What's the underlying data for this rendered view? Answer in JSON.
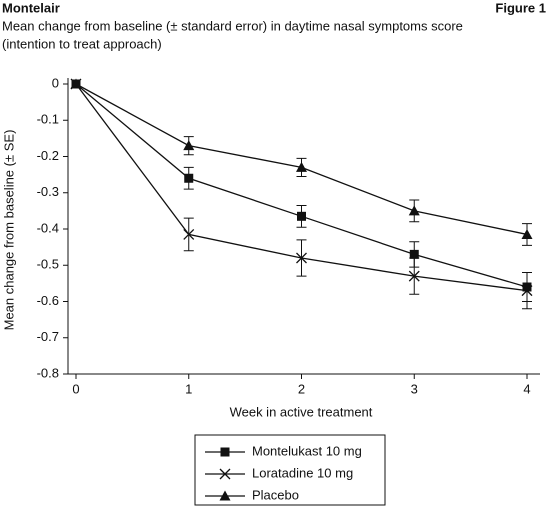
{
  "chart_data": {
    "type": "line",
    "header": "Montelair",
    "figure_label": "Figure 1",
    "title": "Mean change from baseline (± standard error) in daytime nasal symptoms score",
    "subtitle": "(intention to treat approach)",
    "x_label": "Week in active treatment",
    "y_label": "Mean change from baseline (± SE)",
    "x": [
      0,
      1,
      2,
      3,
      4
    ],
    "xlim": [
      0,
      4
    ],
    "xticks": [
      0,
      1,
      2,
      3,
      4
    ],
    "ylim": [
      -0.8,
      0
    ],
    "yticks": [
      0,
      -0.1,
      -0.2,
      -0.3,
      -0.4,
      -0.5,
      -0.6,
      -0.7,
      -0.8
    ],
    "series": [
      {
        "name": "Montelukast 10 mg",
        "color": "#111111",
        "marker": "square",
        "values": [
          0,
          -0.26,
          -0.365,
          -0.47,
          -0.56
        ],
        "errors": [
          null,
          0.03,
          0.03,
          0.035,
          0.04
        ]
      },
      {
        "name": "Loratadine 10 mg",
        "color": "#111111",
        "marker": "cross",
        "values": [
          0,
          -0.415,
          -0.48,
          -0.53,
          -0.57
        ],
        "errors": [
          null,
          0.045,
          0.05,
          0.05,
          0.05
        ]
      },
      {
        "name": "Placebo",
        "color": "#111111",
        "marker": "triangle",
        "values": [
          0,
          -0.17,
          -0.23,
          -0.35,
          -0.415
        ],
        "errors": [
          null,
          0.025,
          0.025,
          0.03,
          0.03
        ]
      }
    ]
  }
}
